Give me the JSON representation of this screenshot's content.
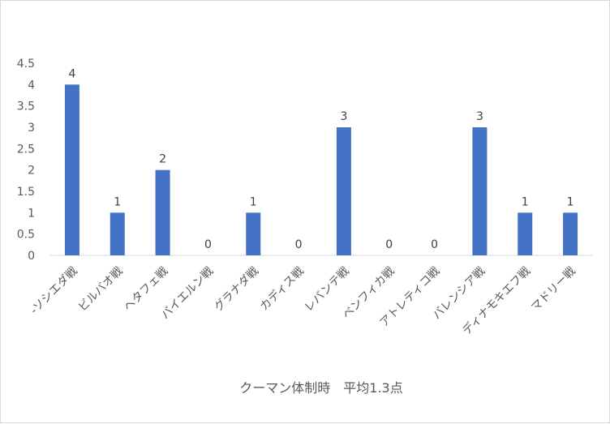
{
  "chart_data": {
    "type": "bar",
    "title": "",
    "xlabel": "クーマン体制時　平均1.3点",
    "ylabel": "",
    "ylim": [
      0,
      4.5
    ],
    "yticks": [
      "0",
      "0.5",
      "1",
      "1.5",
      "2",
      "2.5",
      "3",
      "3.5",
      "4",
      "4.5"
    ],
    "grid": false,
    "legend": "none",
    "bar_color": "#4472c4",
    "categories": [
      "-ソシエダ戦",
      "ビルバオ戦",
      "ヘタフェ戦",
      "バイエルン戦",
      "グラナダ戦",
      "カディス戦",
      "レバンテ戦",
      "ベンフィカ戦",
      "アトレティコ戦",
      "バレンシア戦",
      "ディナモキエフ戦",
      "マドリー戦"
    ],
    "values": [
      4,
      1,
      2,
      0,
      1,
      0,
      3,
      0,
      0,
      3,
      1,
      1
    ],
    "data_labels": [
      "4",
      "1",
      "2",
      "0",
      "1",
      "0",
      "3",
      "0",
      "0",
      "3",
      "1",
      "1"
    ]
  }
}
